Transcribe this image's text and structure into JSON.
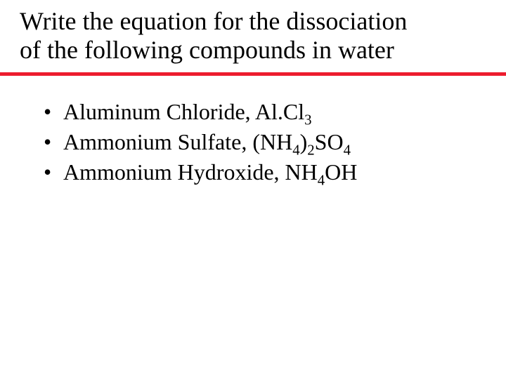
{
  "colors": {
    "rule": "#ed1c2e",
    "background": "#ffffff",
    "text": "#000000"
  },
  "title": {
    "line1": "Write the equation for the dissociation",
    "line2": "of the following compounds in water",
    "fontsize": 36
  },
  "bullets": [
    {
      "name": "Aluminum Chloride",
      "formula_parts": [
        "Al.Cl",
        {
          "sub": "3"
        }
      ]
    },
    {
      "name": "Ammonium Sulfate",
      "formula_parts": [
        "(NH",
        {
          "sub": "4"
        },
        ")",
        {
          "sub": "2"
        },
        "SO",
        {
          "sub": "4"
        }
      ]
    },
    {
      "name": "Ammonium Hydroxide",
      "formula_parts": [
        "NH",
        {
          "sub": "4"
        },
        "OH"
      ]
    }
  ],
  "body_fontsize": 32
}
